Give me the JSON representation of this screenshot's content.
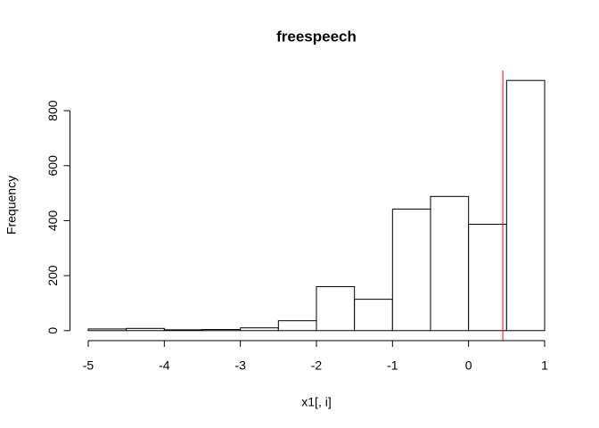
{
  "chart_data": {
    "type": "histogram",
    "title": "freespeech",
    "x_label": "x1[, i]",
    "y_label": "Frequency",
    "bins": [
      -5,
      -4.5,
      -4,
      -3.5,
      -3,
      -2.5,
      -2,
      -1.5,
      -1,
      -0.5,
      0,
      0.5,
      1
    ],
    "values": [
      6,
      8,
      3,
      4,
      10,
      36,
      160,
      114,
      442,
      488,
      387,
      910
    ],
    "color": "#ffffff",
    "edge_color": "#000000",
    "xlim": [
      -5.24,
      1.24
    ],
    "ylim": [
      -36.4,
      946.4
    ],
    "xticks": [
      -5,
      -4,
      -3,
      -2,
      -1,
      0,
      1
    ],
    "yticks": [
      0,
      200,
      400,
      600,
      800
    ],
    "vline": 0.45,
    "vline_color": "#ff0000"
  }
}
